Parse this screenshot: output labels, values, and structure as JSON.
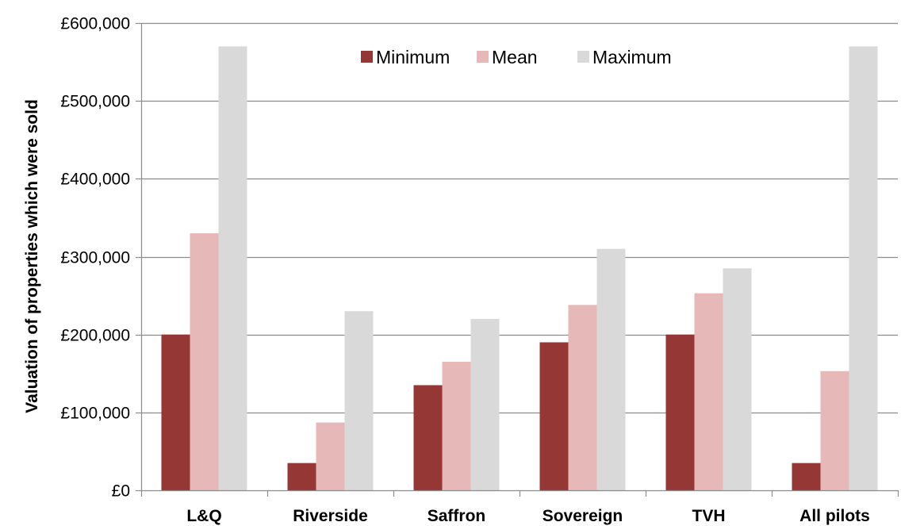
{
  "chart_data": {
    "type": "bar",
    "title": "",
    "xlabel": "",
    "ylabel": "Valuation of properties which were sold",
    "categories": [
      "L&Q",
      "Riverside",
      "Saffron",
      "Sovereign",
      "TVH",
      "All pilots"
    ],
    "series": [
      {
        "name": "Minimum",
        "color": "#953735",
        "values": [
          200000,
          35000,
          135000,
          190000,
          200000,
          35000
        ]
      },
      {
        "name": "Mean",
        "color": "#e6b9b8",
        "values": [
          330000,
          87000,
          165000,
          238000,
          253000,
          153000
        ]
      },
      {
        "name": "Maximum",
        "color": "#d9d9d9",
        "values": [
          570000,
          230000,
          220000,
          310000,
          285000,
          570000
        ]
      }
    ],
    "ylim": [
      0,
      600000
    ],
    "yticks": [
      0,
      100000,
      200000,
      300000,
      400000,
      500000,
      600000
    ],
    "ytick_labels": [
      "£0",
      "£100,000",
      "£200,000",
      "£300,000",
      "£400,000",
      "£500,000",
      "£600,000"
    ],
    "grid": true,
    "legend_position": "top-center"
  }
}
